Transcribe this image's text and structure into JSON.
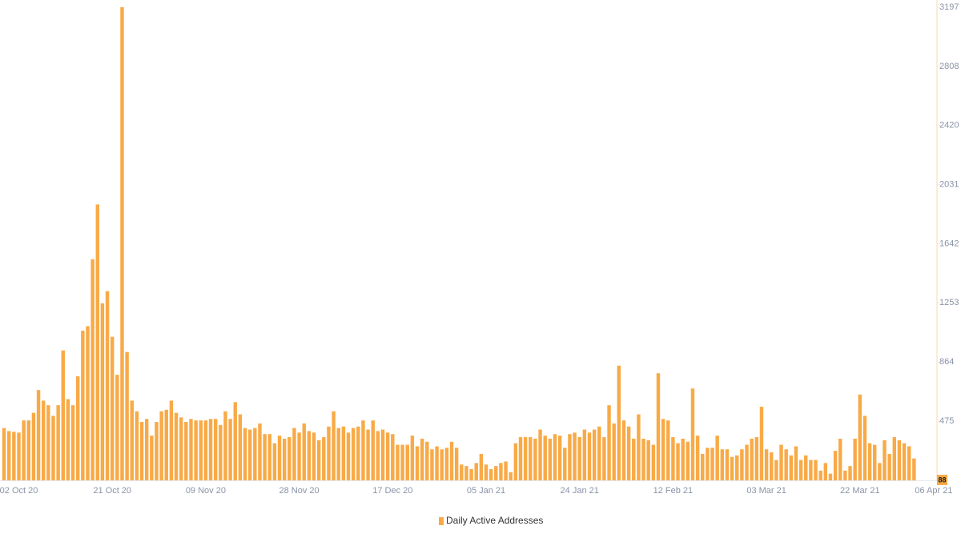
{
  "chart_data": {
    "type": "bar",
    "series": [
      {
        "name": "Daily Active Addresses",
        "color": "#f8aa47",
        "values": [
          430,
          410,
          405,
          400,
          480,
          480,
          530,
          680,
          610,
          580,
          510,
          580,
          940,
          620,
          580,
          770,
          1070,
          1100,
          1540,
          1900,
          1250,
          1330,
          1030,
          780,
          3197,
          930,
          610,
          540,
          470,
          490,
          380,
          470,
          540,
          550,
          610,
          530,
          500,
          470,
          490,
          480,
          480,
          480,
          490,
          490,
          450,
          540,
          490,
          600,
          520,
          430,
          420,
          430,
          460,
          390,
          390,
          330,
          380,
          360,
          370,
          430,
          400,
          460,
          410,
          400,
          350,
          370,
          440,
          540,
          430,
          440,
          400,
          430,
          440,
          480,
          420,
          480,
          410,
          420,
          400,
          390,
          320,
          320,
          320,
          380,
          310,
          360,
          340,
          290,
          310,
          290,
          300,
          340,
          300,
          190,
          180,
          160,
          200,
          260,
          190,
          160,
          180,
          200,
          210,
          140,
          330,
          370,
          370,
          370,
          360,
          420,
          380,
          360,
          390,
          380,
          300,
          390,
          400,
          370,
          420,
          400,
          420,
          440,
          370,
          580,
          460,
          840,
          480,
          440,
          360,
          520,
          360,
          350,
          320,
          790,
          490,
          480,
          370,
          330,
          360,
          340,
          690,
          380,
          260,
          300,
          300,
          380,
          290,
          290,
          240,
          250,
          290,
          320,
          360,
          370,
          570,
          290,
          270,
          220,
          320,
          290,
          250,
          310,
          220,
          250,
          220,
          220,
          150,
          200,
          130,
          280,
          360,
          150,
          180,
          360,
          650,
          510,
          330,
          320,
          200,
          350,
          260,
          370,
          350,
          330,
          310,
          230,
          null,
          null,
          null,
          null
        ]
      }
    ],
    "categories": [
      null,
      null,
      null,
      "02 Oct 20",
      null,
      null,
      null,
      null,
      null,
      null,
      null,
      null,
      null,
      null,
      null,
      null,
      null,
      null,
      null,
      null,
      null,
      null,
      "21 Oct 20",
      null,
      null,
      null,
      null,
      null,
      null,
      null,
      null,
      null,
      null,
      null,
      null,
      null,
      null,
      null,
      null,
      null,
      null,
      "09 Nov 20",
      null,
      null,
      null,
      null,
      null,
      null,
      null,
      null,
      null,
      null,
      null,
      null,
      null,
      null,
      null,
      null,
      null,
      null,
      "28 Nov 20",
      null,
      null,
      null,
      null,
      null,
      null,
      null,
      null,
      null,
      null,
      null,
      null,
      null,
      null,
      null,
      null,
      null,
      null,
      "17 Dec 20",
      null,
      null,
      null,
      null,
      null,
      null,
      null,
      null,
      null,
      null,
      null,
      null,
      null,
      null,
      null,
      null,
      null,
      null,
      "05 Jan 21",
      null,
      null,
      null,
      null,
      null,
      null,
      null,
      null,
      null,
      null,
      null,
      null,
      null,
      null,
      null,
      null,
      null,
      null,
      "24 Jan 21",
      null,
      null,
      null,
      null,
      null,
      null,
      null,
      null,
      null,
      null,
      null,
      null,
      null,
      null,
      null,
      null,
      null,
      null,
      "12 Feb 21",
      null,
      null,
      null,
      null,
      null,
      null,
      null,
      null,
      null,
      null,
      null,
      null,
      null,
      null,
      null,
      null,
      null,
      null,
      "03 Mar 21",
      null,
      null,
      null,
      null,
      null,
      null,
      null,
      null,
      null,
      null,
      null,
      null,
      null,
      null,
      null,
      null,
      null,
      null,
      "22 Mar 21",
      null,
      null,
      null,
      null,
      null,
      null,
      null,
      null,
      null,
      null,
      null,
      null,
      null,
      null,
      "06 Apr 21"
    ],
    "ylim": [
      86,
      3197
    ],
    "yticks": [
      475,
      864,
      1253,
      1642,
      2031,
      2420,
      2808,
      3197
    ],
    "last_value": 88
  }
}
